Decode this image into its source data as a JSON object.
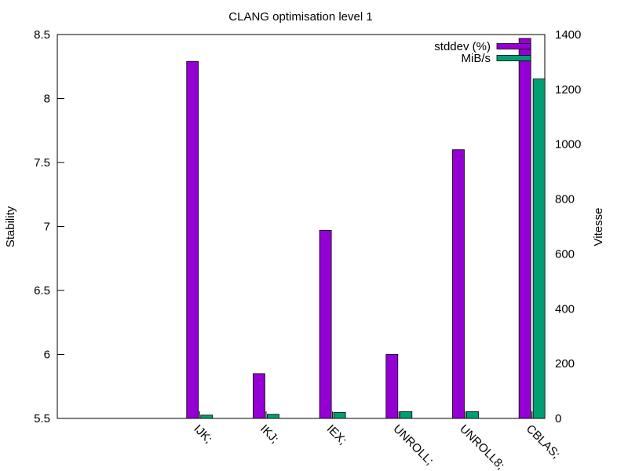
{
  "chart_data": {
    "type": "bar",
    "title": "CLANG optimisation level 1",
    "ylabel": "Stability",
    "y2label": "Vitesse",
    "categories": [
      "IJK;",
      "IKJ;",
      "IEX;",
      "UNROLL;",
      "UNROLL8;",
      "CBLAS;"
    ],
    "ylim": [
      5.5,
      8.5
    ],
    "y2lim": [
      0,
      1400
    ],
    "yticks": [
      "5.5",
      "6",
      "6.5",
      "7",
      "7.5",
      "8",
      "8.5"
    ],
    "y2ticks": [
      "0",
      "200",
      "400",
      "600",
      "800",
      "1000",
      "1200",
      "1400"
    ],
    "legend_position": "top-right",
    "grid": false,
    "series": [
      {
        "name": "stddev (%)",
        "axis": "left",
        "color": "#9400d3",
        "values": [
          8.29,
          5.85,
          6.97,
          6.0,
          7.6,
          8.47
        ]
      },
      {
        "name": "MiB/s",
        "axis": "right",
        "color": "#009e73",
        "values": [
          12,
          15,
          22,
          25,
          25,
          1238
        ]
      }
    ]
  }
}
